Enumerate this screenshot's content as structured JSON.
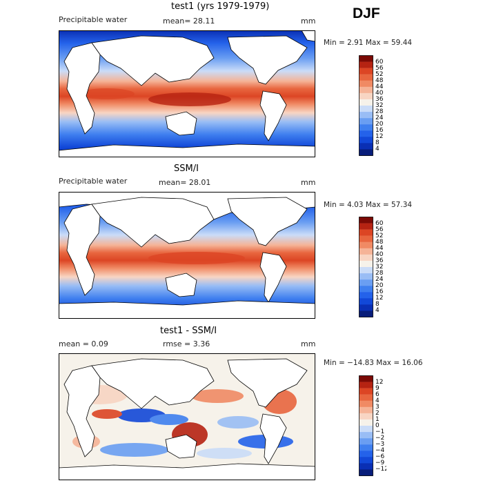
{
  "season": "DJF",
  "colors": {
    "mean_scale": [
      "#081d7a",
      "#0a2fb4",
      "#1248d8",
      "#2462ea",
      "#3f7fef",
      "#6a9ef2",
      "#99bdf5",
      "#cadcf8",
      "#f6f2ea",
      "#f8d5c3",
      "#f5b397",
      "#f08a64",
      "#e8663f",
      "#dc4524",
      "#b62312",
      "#7b0a05"
    ],
    "diff_scale": [
      "#081d7a",
      "#0a2fb4",
      "#1248d8",
      "#2462ea",
      "#3f7fef",
      "#6a9ef2",
      "#99bdf5",
      "#cadcf8",
      "#f6f2ea",
      "#f8d5c3",
      "#f5b397",
      "#f08a64",
      "#e8663f",
      "#dc4524",
      "#b62312",
      "#7b0a05"
    ]
  },
  "panels": [
    {
      "title": "test1 (yrs 1979-1979)",
      "left_label": "Precipitable water",
      "mid_label": "mean=  28.11",
      "units": "mm",
      "minmax": "Min =   2.91 Max =  59.44",
      "colorbar_labels": [
        "60",
        "56",
        "52",
        "48",
        "44",
        "40",
        "36",
        "32",
        "28",
        "24",
        "20",
        "16",
        "12",
        "8",
        "4"
      ]
    },
    {
      "title": "SSM/I",
      "left_label": "Precipitable water",
      "mid_label": "mean=  28.01",
      "units": "mm",
      "minmax": "Min =   4.03 Max =  57.34",
      "colorbar_labels": [
        "60",
        "56",
        "52",
        "48",
        "44",
        "40",
        "36",
        "32",
        "28",
        "24",
        "20",
        "16",
        "12",
        "8",
        "4"
      ]
    },
    {
      "title": "test1 - SSM/I",
      "left_label": "mean =    0.09",
      "mid_label": "rmse =    3.36",
      "units": "mm",
      "minmax": "Min = −14.83 Max =  16.06",
      "colorbar_labels": [
        "12",
        "9",
        "6",
        "4",
        "3",
        "2",
        "1",
        "0",
        "−1",
        "−2",
        "−3",
        "−4",
        "−6",
        "−9",
        "−12"
      ]
    }
  ]
}
